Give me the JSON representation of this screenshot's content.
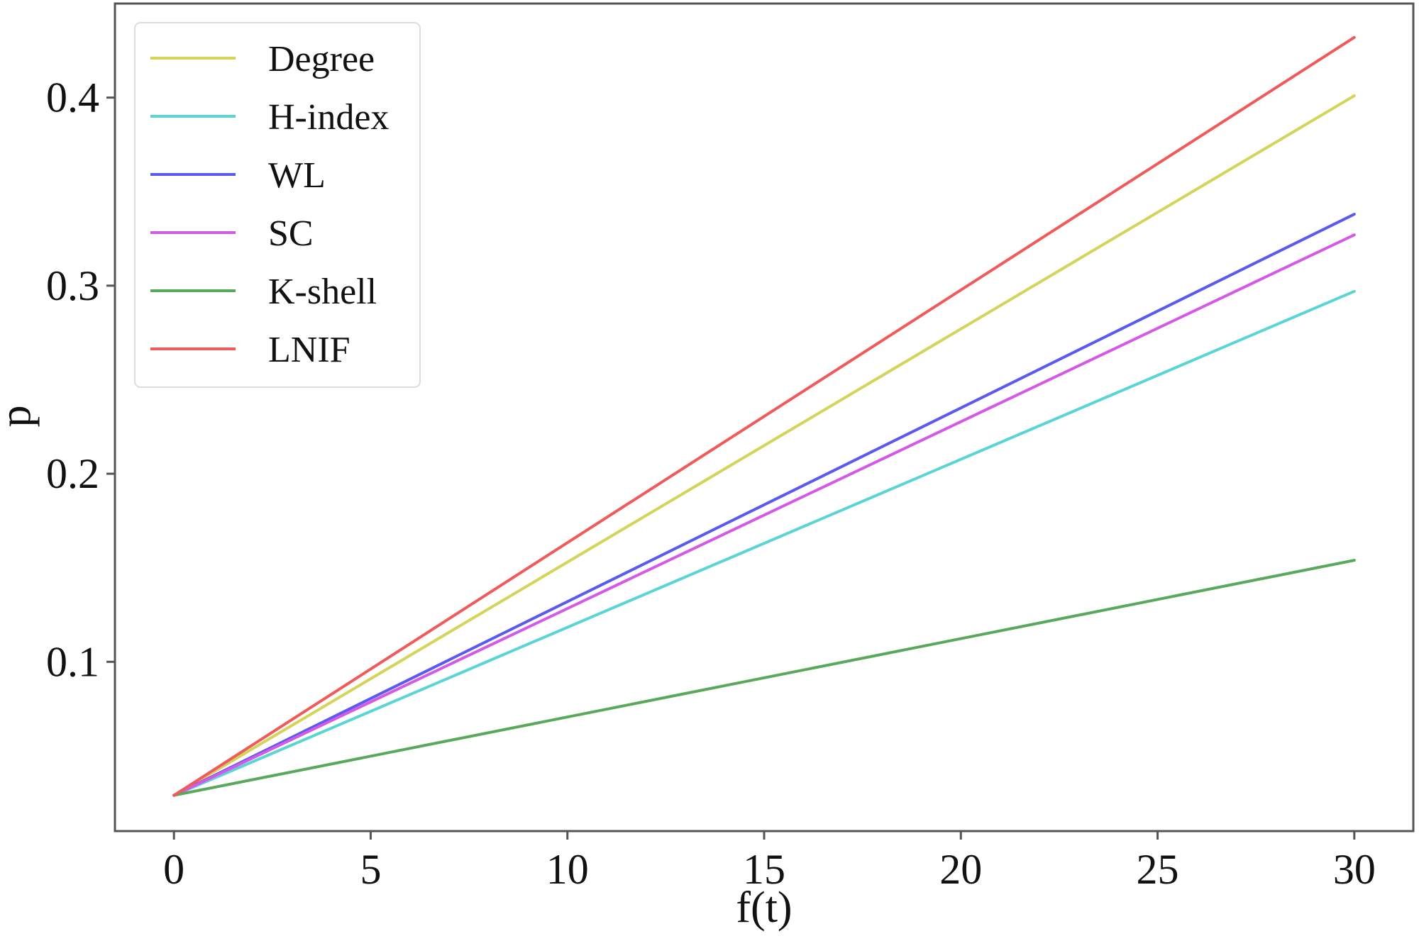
{
  "chart_data": {
    "type": "line",
    "title": "",
    "xlabel": "f(t)",
    "ylabel": "p",
    "xlim": [
      -1.5,
      31.5
    ],
    "ylim": [
      0.01,
      0.45
    ],
    "xticks": [
      0,
      5,
      10,
      15,
      20,
      25,
      30
    ],
    "xtick_labels": [
      "0",
      "5",
      "10",
      "15",
      "20",
      "25",
      "30"
    ],
    "yticks": [
      0.1,
      0.2,
      0.3,
      0.4
    ],
    "ytick_labels": [
      "0.1",
      "0.2",
      "0.3",
      "0.4"
    ],
    "grid": false,
    "legend_position": "top-left",
    "x": [
      0,
      30
    ],
    "series": [
      {
        "name": "Degree",
        "color": "#d4d45a",
        "values": [
          0.029,
          0.401
        ]
      },
      {
        "name": "H-index",
        "color": "#5ad4d4",
        "values": [
          0.029,
          0.297
        ]
      },
      {
        "name": "WL",
        "color": "#5a5af0",
        "values": [
          0.029,
          0.338
        ]
      },
      {
        "name": "SC",
        "color": "#d45ae6",
        "values": [
          0.029,
          0.327
        ]
      },
      {
        "name": "K-shell",
        "color": "#5aa85a",
        "values": [
          0.029,
          0.154
        ]
      },
      {
        "name": "LNIF",
        "color": "#f05a5a",
        "values": [
          0.029,
          0.432
        ]
      }
    ]
  }
}
